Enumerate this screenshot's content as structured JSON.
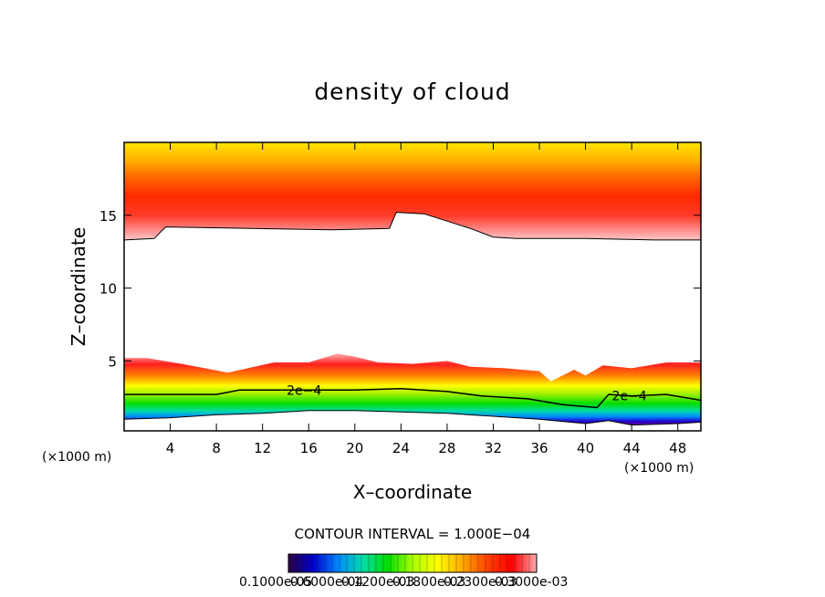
{
  "chart_data": {
    "type": "heatmap",
    "title": "density of cloud",
    "xlabel": "X–coordinate",
    "ylabel": "Z–coordinate",
    "x_unit_left": "(×1000 m)",
    "x_unit_right": "(×1000 m)",
    "xlim": [
      0,
      50
    ],
    "ylim": [
      0.2,
      20
    ],
    "x_ticks": [
      4,
      8,
      12,
      16,
      20,
      24,
      28,
      32,
      36,
      40,
      44,
      48
    ],
    "y_ticks": [
      5,
      10,
      15
    ],
    "x_tick_labels": [
      "4",
      "8",
      "12",
      "16",
      "20",
      "24",
      "28",
      "32",
      "36",
      "40",
      "44",
      "48"
    ],
    "y_tick_labels": [
      "5",
      "10",
      "15"
    ],
    "contour_interval_text": "CONTOUR INTERVAL = 1.000E−04",
    "contour_labels": [
      {
        "text": "2e−4",
        "x": 15.6,
        "z": 3.0
      },
      {
        "text": "2e−4",
        "x": 43.8,
        "z": 2.6
      }
    ],
    "upper_layer_base_z": [
      [
        0,
        13.3
      ],
      [
        2.6,
        13.4
      ],
      [
        3.6,
        14.2
      ],
      [
        18,
        14.0
      ],
      [
        23,
        14.1
      ],
      [
        23.6,
        15.2
      ],
      [
        26,
        15.1
      ],
      [
        28,
        14.6
      ],
      [
        30,
        14.1
      ],
      [
        32,
        13.5
      ],
      [
        34,
        13.4
      ],
      [
        40,
        13.4
      ],
      [
        46,
        13.3
      ],
      [
        50,
        13.3
      ]
    ],
    "lower_layer_top_z": [
      [
        0,
        5.2
      ],
      [
        2,
        5.2
      ],
      [
        5,
        4.8
      ],
      [
        7,
        4.5
      ],
      [
        9,
        4.2
      ],
      [
        13,
        4.9
      ],
      [
        16,
        4.9
      ],
      [
        18.5,
        5.5
      ],
      [
        20,
        5.3
      ],
      [
        22,
        4.9
      ],
      [
        25,
        4.8
      ],
      [
        28,
        5.0
      ],
      [
        30,
        4.6
      ],
      [
        33,
        4.5
      ],
      [
        36,
        4.3
      ],
      [
        37,
        3.6
      ],
      [
        39,
        4.4
      ],
      [
        40,
        4.0
      ],
      [
        41.5,
        4.7
      ],
      [
        44,
        4.5
      ],
      [
        47,
        4.9
      ],
      [
        50,
        4.9
      ]
    ],
    "contour_2e4_z": [
      [
        0,
        2.7
      ],
      [
        3,
        2.7
      ],
      [
        8,
        2.7
      ],
      [
        10,
        3.0
      ],
      [
        14,
        3.0
      ],
      [
        20,
        3.0
      ],
      [
        24,
        3.1
      ],
      [
        28,
        2.9
      ],
      [
        31,
        2.6
      ],
      [
        35,
        2.4
      ],
      [
        38,
        2.0
      ],
      [
        41,
        1.8
      ],
      [
        42,
        2.7
      ],
      [
        44,
        2.6
      ],
      [
        47,
        2.7
      ],
      [
        50,
        2.3
      ]
    ],
    "lower_layer_base_z": [
      [
        0,
        1.0
      ],
      [
        4,
        1.1
      ],
      [
        8,
        1.3
      ],
      [
        12,
        1.4
      ],
      [
        16,
        1.6
      ],
      [
        20,
        1.6
      ],
      [
        24,
        1.5
      ],
      [
        28,
        1.4
      ],
      [
        32,
        1.2
      ],
      [
        36,
        1.0
      ],
      [
        40,
        0.7
      ],
      [
        42,
        0.9
      ],
      [
        44,
        0.6
      ],
      [
        48,
        0.7
      ],
      [
        50,
        0.8
      ]
    ],
    "colorbar": {
      "min_label": "0.1000e-05",
      "labels": [
        "0.1000e-05",
        "0.6000e-04",
        "0.1200e-03",
        "0.1800e-03",
        "0.2300e-03",
        "0.3000e-03"
      ],
      "colors": [
        "#2b0040",
        "#0000cc",
        "#0088ff",
        "#00ddaa",
        "#00dd00",
        "#aaff00",
        "#ffff00",
        "#ffaa00",
        "#ff4400",
        "#ff0000",
        "#ffaaaa"
      ]
    }
  }
}
